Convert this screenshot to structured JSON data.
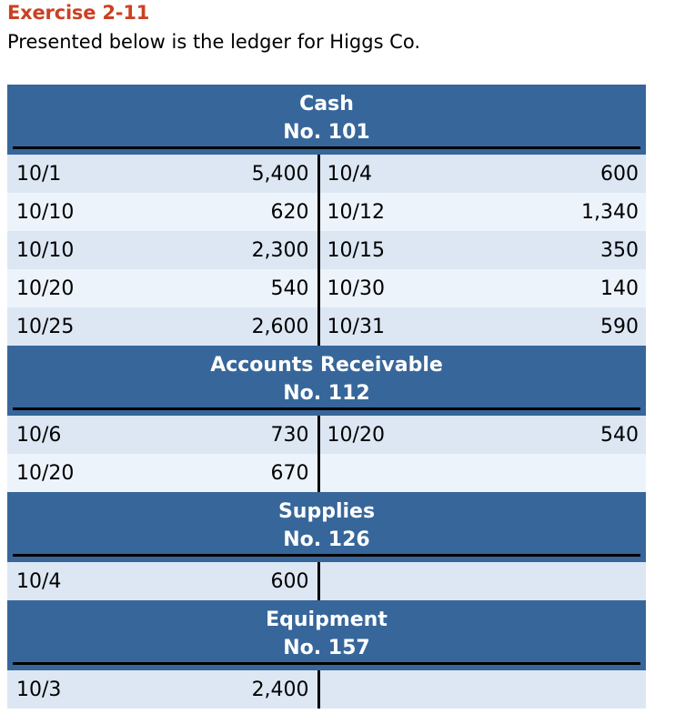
{
  "page": {
    "title": "Exercise 2-11",
    "subtitle": "Presented below is the ledger for Higgs Co."
  },
  "colors": {
    "title_red": "#cb4023",
    "header_blue": "#37669a",
    "row_shade_dark": "#dce7f3",
    "row_shade_light": "#edf3fb",
    "rule_black": "#000000"
  },
  "ledger": {
    "accounts": [
      {
        "name": "Cash",
        "number": "No. 101",
        "rows": [
          {
            "debit_date": "10/1",
            "debit_amount": "5,400",
            "credit_date": "10/4",
            "credit_amount": "600"
          },
          {
            "debit_date": "10/10",
            "debit_amount": "620",
            "credit_date": "10/12",
            "credit_amount": "1,340"
          },
          {
            "debit_date": "10/10",
            "debit_amount": "2,300",
            "credit_date": "10/15",
            "credit_amount": "350"
          },
          {
            "debit_date": "10/20",
            "debit_amount": "540",
            "credit_date": "10/30",
            "credit_amount": "140"
          },
          {
            "debit_date": "10/25",
            "debit_amount": "2,600",
            "credit_date": "10/31",
            "credit_amount": "590"
          }
        ]
      },
      {
        "name": "Accounts Receivable",
        "number": "No. 112",
        "rows": [
          {
            "debit_date": "10/6",
            "debit_amount": "730",
            "credit_date": "10/20",
            "credit_amount": "540"
          },
          {
            "debit_date": "10/20",
            "debit_amount": "670",
            "credit_date": "",
            "credit_amount": ""
          }
        ]
      },
      {
        "name": "Supplies",
        "number": "No. 126",
        "rows": [
          {
            "debit_date": "10/4",
            "debit_amount": "600",
            "credit_date": "",
            "credit_amount": ""
          }
        ]
      },
      {
        "name": "Equipment",
        "number": "No. 157",
        "rows": [
          {
            "debit_date": "10/3",
            "debit_amount": "2,400",
            "credit_date": "",
            "credit_amount": ""
          }
        ]
      }
    ]
  }
}
